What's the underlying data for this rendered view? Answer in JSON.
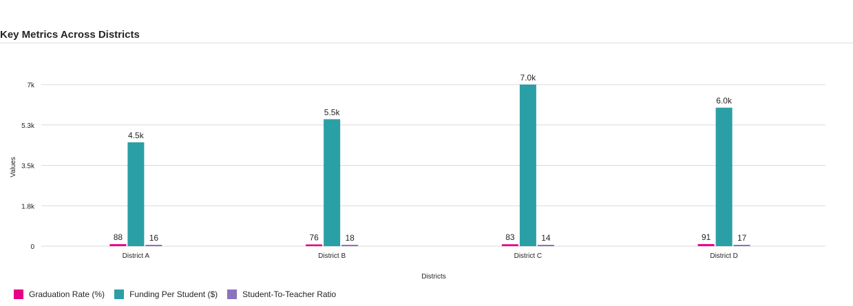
{
  "chart_data": {
    "type": "bar",
    "title": "Key Metrics Across Districts",
    "xlabel": "Districts",
    "ylabel": "Values",
    "categories": [
      "District A",
      "District B",
      "District C",
      "District D"
    ],
    "series": [
      {
        "name": "Graduation Rate (%)",
        "color": "#e6008a",
        "values": [
          88,
          76,
          83,
          91
        ],
        "labels": [
          "88",
          "76",
          "83",
          "91"
        ]
      },
      {
        "name": "Funding Per Student ($)",
        "color": "#2b9fa6",
        "values": [
          4500,
          5500,
          7000,
          6000
        ],
        "labels": [
          "4.5k",
          "5.5k",
          "7.0k",
          "6.0k"
        ]
      },
      {
        "name": "Student-To-Teacher Ratio",
        "color": "#8b72be",
        "values": [
          16,
          18,
          14,
          17
        ],
        "labels": [
          "16",
          "18",
          "14",
          "17"
        ]
      }
    ],
    "ylim": [
      0,
      7000
    ],
    "yticks": [
      {
        "value": 0,
        "label": "0"
      },
      {
        "value": 1750,
        "label": "1.8k"
      },
      {
        "value": 3500,
        "label": "3.5k"
      },
      {
        "value": 5250,
        "label": "5.3k"
      },
      {
        "value": 7000,
        "label": "7k"
      }
    ],
    "grid": true,
    "legend_position": "bottom-left"
  }
}
